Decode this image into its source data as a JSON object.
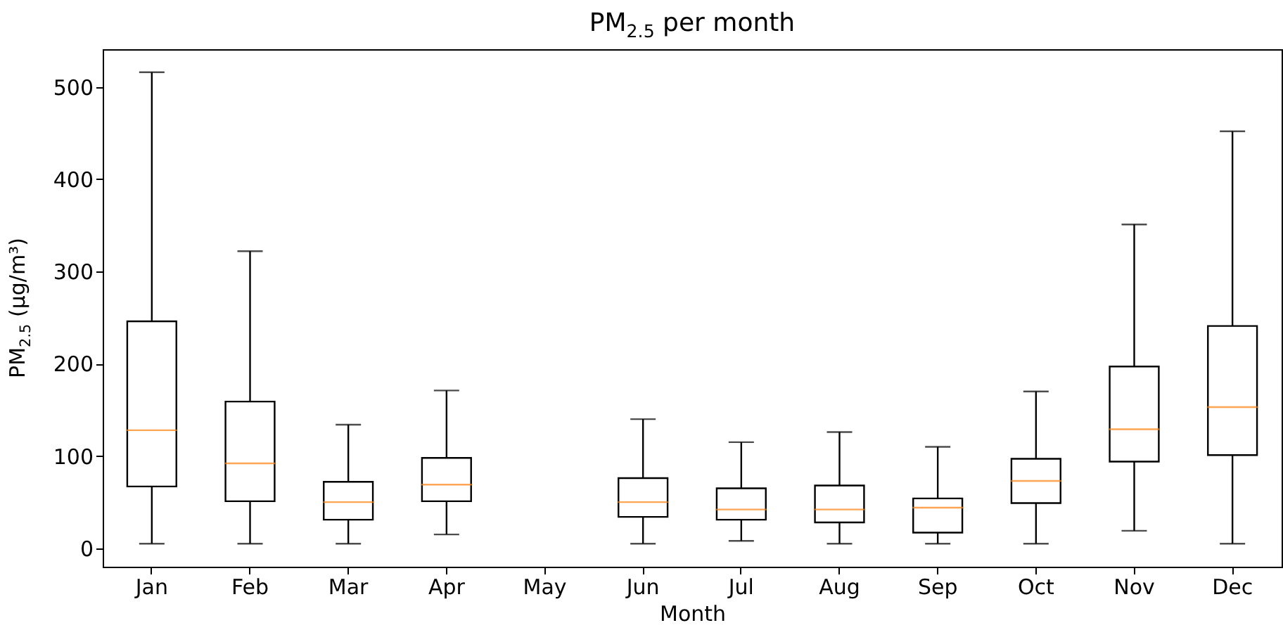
{
  "chart_data": {
    "type": "box",
    "title": "PM$_{2.5}$ per month",
    "xlabel": "Month",
    "ylabel": "PM$_{2.5}$ (μg/m³)",
    "categories": [
      "Jan",
      "Feb",
      "Mar",
      "Apr",
      "May",
      "Jun",
      "Jul",
      "Aug",
      "Sep",
      "Oct",
      "Nov",
      "Dec"
    ],
    "boxes": [
      {
        "low": 5,
        "q1": 67,
        "median": 128,
        "q3": 246,
        "high": 516
      },
      {
        "low": 5,
        "q1": 51,
        "median": 92,
        "q3": 159,
        "high": 322
      },
      {
        "low": 5,
        "q1": 31,
        "median": 50,
        "q3": 72,
        "high": 134
      },
      {
        "low": 15,
        "q1": 51,
        "median": 69,
        "q3": 98,
        "high": 171
      },
      null,
      {
        "low": 5,
        "q1": 34,
        "median": 50,
        "q3": 76,
        "high": 140
      },
      {
        "low": 8,
        "q1": 31,
        "median": 42,
        "q3": 65,
        "high": 115
      },
      {
        "low": 5,
        "q1": 28,
        "median": 42,
        "q3": 68,
        "high": 126
      },
      {
        "low": 5,
        "q1": 17,
        "median": 44,
        "q3": 54,
        "high": 110
      },
      {
        "low": 5,
        "q1": 49,
        "median": 73,
        "q3": 97,
        "high": 170
      },
      {
        "low": 19,
        "q1": 94,
        "median": 129,
        "q3": 197,
        "high": 351
      },
      {
        "low": 5,
        "q1": 101,
        "median": 153,
        "q3": 241,
        "high": 452
      }
    ],
    "ylim": [
      -20,
      541
    ],
    "yticks": [
      0,
      100,
      200,
      300,
      400,
      500
    ],
    "grid": false
  }
}
